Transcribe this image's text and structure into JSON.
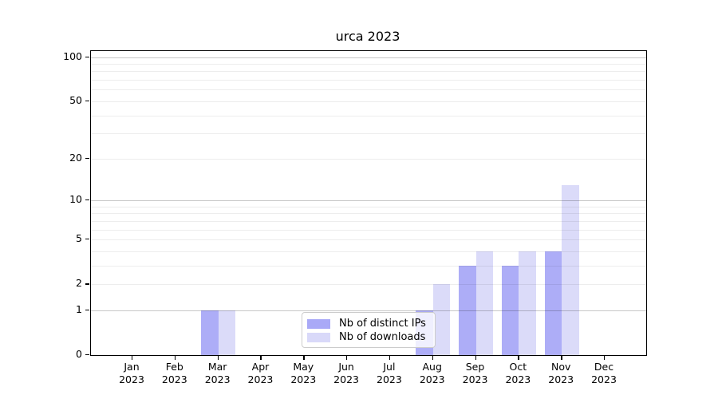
{
  "figure": {
    "title": "urca 2023"
  },
  "chart_data": {
    "type": "bar",
    "title": "urca 2023",
    "categories": [
      "Jan",
      "Feb",
      "Mar",
      "Apr",
      "May",
      "Jun",
      "Jul",
      "Aug",
      "Sep",
      "Oct",
      "Nov",
      "Dec"
    ],
    "year_label": "2023",
    "series": [
      {
        "name": "Nb of distinct IPs",
        "color": "#a9a9f7",
        "values": [
          0,
          0,
          1,
          0,
          0,
          0,
          0,
          1,
          3,
          3,
          4,
          0
        ]
      },
      {
        "name": "Nb of downloads",
        "color": "#d9d9f9",
        "values": [
          0,
          0,
          1,
          0,
          0,
          0,
          0,
          2,
          4,
          4,
          13,
          0
        ]
      }
    ],
    "xlabel": "",
    "ylabel": "",
    "yscale": "log1p",
    "ylim": [
      0,
      110
    ],
    "ytick_labels": [
      0,
      1,
      2,
      5,
      10,
      20,
      50,
      100
    ],
    "grid_major_values": [
      1,
      10,
      100
    ],
    "grid_minor_values": [
      2,
      3,
      4,
      5,
      6,
      7,
      8,
      9,
      20,
      30,
      40,
      50,
      60,
      70,
      80,
      90
    ],
    "grid": "on",
    "legend_position": "lower center inside",
    "axis_color": "#000000",
    "background_color": "#ffffff"
  }
}
